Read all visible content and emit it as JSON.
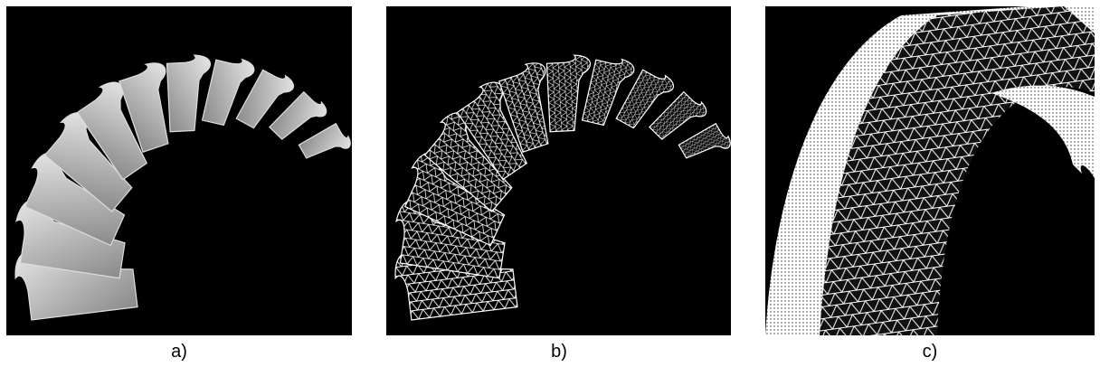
{
  "panels": [
    {
      "caption": "a)"
    },
    {
      "caption": "b)"
    },
    {
      "caption": "c)"
    }
  ]
}
